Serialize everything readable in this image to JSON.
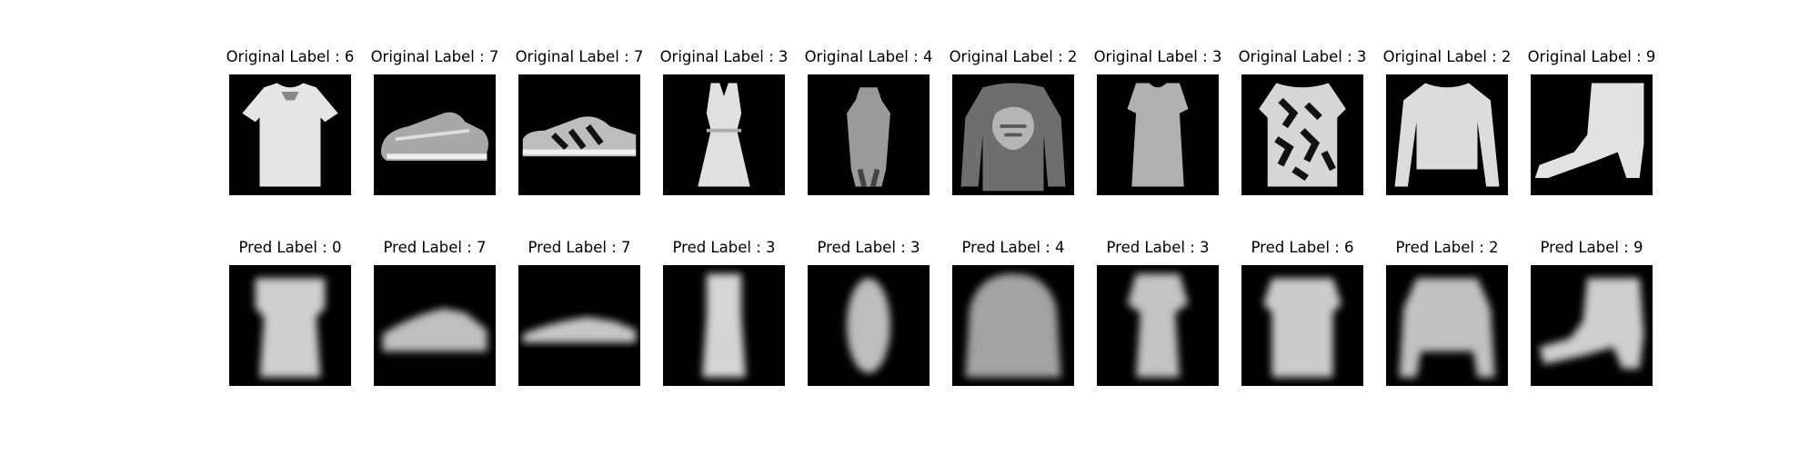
{
  "figure": {
    "rows": [
      {
        "id": "original",
        "items": [
          {
            "title": "Original Label : 6",
            "picture": "tshirt"
          },
          {
            "title": "Original Label : 7",
            "picture": "sneaker"
          },
          {
            "title": "Original Label : 7",
            "picture": "sneaker-striped"
          },
          {
            "title": "Original Label : 3",
            "picture": "dress"
          },
          {
            "title": "Original Label : 4",
            "picture": "coat-figure"
          },
          {
            "title": "Original Label : 2",
            "picture": "pullover-print"
          },
          {
            "title": "Original Label : 3",
            "picture": "dress-wide"
          },
          {
            "title": "Original Label : 3",
            "picture": "patterned-top"
          },
          {
            "title": "Original Label : 2",
            "picture": "longsleeve"
          },
          {
            "title": "Original Label : 9",
            "picture": "ankle-boot"
          }
        ]
      },
      {
        "id": "pred",
        "items": [
          {
            "title": "Pred Label : 0",
            "picture": "blur-top"
          },
          {
            "title": "Pred Label : 7",
            "picture": "blur-sneaker"
          },
          {
            "title": "Pred Label : 7",
            "picture": "blur-sneaker-flat"
          },
          {
            "title": "Pred Label : 3",
            "picture": "blur-dress"
          },
          {
            "title": "Pred Label : 3",
            "picture": "blur-oval"
          },
          {
            "title": "Pred Label : 4",
            "picture": "blur-dome"
          },
          {
            "title": "Pred Label : 3",
            "picture": "blur-dress2"
          },
          {
            "title": "Pred Label : 6",
            "picture": "blur-top2"
          },
          {
            "title": "Pred Label : 2",
            "picture": "blur-pullover"
          },
          {
            "title": "Pred Label : 9",
            "picture": "blur-boot"
          }
        ]
      }
    ]
  }
}
